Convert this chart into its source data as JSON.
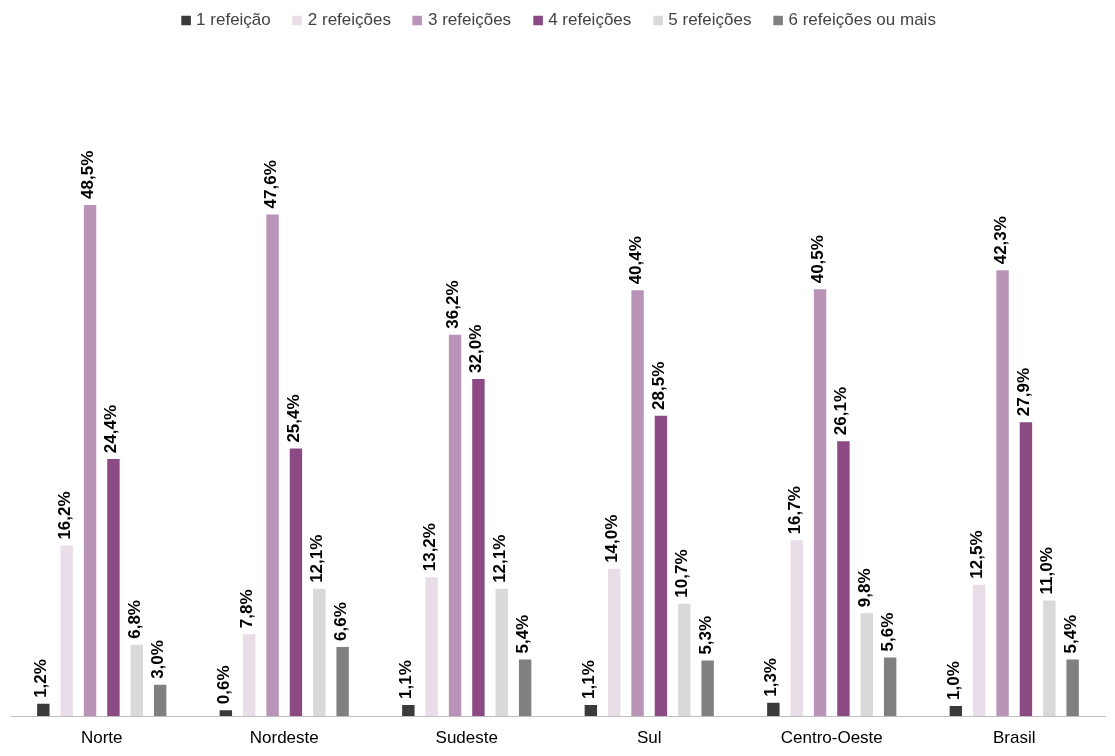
{
  "chart_data": {
    "type": "bar",
    "categories": [
      "Norte",
      "Nordeste",
      "Sudeste",
      "Sul",
      "Centro-Oeste",
      "Brasil"
    ],
    "series": [
      {
        "name": "1 refeição",
        "color": "#3a3a3a",
        "values": [
          1.2,
          0.6,
          1.1,
          1.1,
          1.3,
          1.0
        ],
        "value_labels": [
          "1,2%",
          "0,6%",
          "1,1%",
          "1,1%",
          "1,3%",
          "1,0%"
        ]
      },
      {
        "name": "2 refeições",
        "color": "#e9dde8",
        "values": [
          16.2,
          7.8,
          13.2,
          14.0,
          16.7,
          12.5
        ],
        "value_labels": [
          "16,2%",
          "7,8%",
          "13,2%",
          "14,0%",
          "16,7%",
          "12,5%"
        ]
      },
      {
        "name": "3 refeições",
        "color": "#b994b8",
        "values": [
          48.5,
          47.6,
          36.2,
          40.4,
          40.5,
          42.3
        ],
        "value_labels": [
          "48,5%",
          "47,6%",
          "36,2%",
          "40,4%",
          "40,5%",
          "42,3%"
        ]
      },
      {
        "name": "4 refeições",
        "color": "#8b4a84",
        "values": [
          24.4,
          25.4,
          32.0,
          28.5,
          26.1,
          27.9
        ],
        "value_labels": [
          "24,4%",
          "25,4%",
          "32,0%",
          "28,5%",
          "26,1%",
          "27,9%"
        ]
      },
      {
        "name": "5 refeições",
        "color": "#d9d9d9",
        "values": [
          6.8,
          12.1,
          12.1,
          10.7,
          9.8,
          11.0
        ],
        "value_labels": [
          "6,8%",
          "12,1%",
          "12,1%",
          "10,7%",
          "9,8%",
          "11,0%"
        ]
      },
      {
        "name": "6 refeições ou mais",
        "color": "#808080",
        "values": [
          3.0,
          6.6,
          5.4,
          5.3,
          5.6,
          5.4
        ],
        "value_labels": [
          "3,0%",
          "6,6%",
          "5,4%",
          "5,3%",
          "5,6%",
          "5,4%"
        ]
      }
    ],
    "legend": "top",
    "grid": false
  }
}
